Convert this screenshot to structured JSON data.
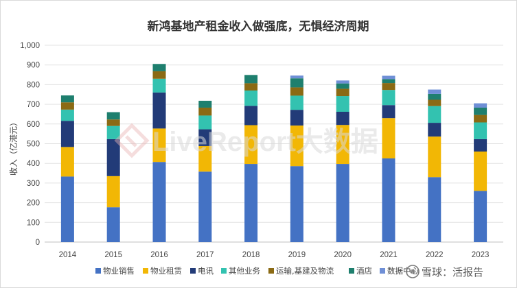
{
  "chart_data": {
    "type": "bar",
    "stacked": true,
    "title": "新鸿基地产租金收入做强底，无惧经济周期",
    "ylabel": "收入（亿港元）",
    "xlabel": "",
    "ylim": [
      0,
      1000
    ],
    "yticks": [
      "0",
      "100",
      "200",
      "300",
      "400",
      "500",
      "600",
      "700",
      "800",
      "900",
      "1,000"
    ],
    "grid": true,
    "legend_position": "bottom",
    "categories": [
      "2014",
      "2015",
      "2016",
      "2017",
      "2018",
      "2019",
      "2020",
      "2021",
      "2022",
      "2023"
    ],
    "series": [
      {
        "name": "物业销售",
        "color": "#4472c4",
        "values": [
          333,
          177,
          407,
          358,
          397,
          386,
          397,
          425,
          330,
          260
        ]
      },
      {
        "name": "物业租赁",
        "color": "#f2b705",
        "values": [
          150,
          158,
          170,
          130,
          197,
          206,
          198,
          205,
          206,
          200
        ]
      },
      {
        "name": "电讯",
        "color": "#223b78",
        "values": [
          133,
          188,
          183,
          85,
          98,
          80,
          67,
          66,
          70,
          63
        ]
      },
      {
        "name": "其他业务",
        "color": "#33c2b0",
        "values": [
          57,
          67,
          70,
          70,
          78,
          72,
          80,
          77,
          85,
          85
        ]
      },
      {
        "name": "运输,基建及物流",
        "color": "#8b6a14",
        "values": [
          37,
          33,
          38,
          40,
          37,
          42,
          37,
          35,
          32,
          38
        ]
      },
      {
        "name": "酒店",
        "color": "#1e7f6e",
        "values": [
          35,
          37,
          37,
          35,
          42,
          46,
          27,
          20,
          30,
          37
        ]
      },
      {
        "name": "数据中心",
        "color": "#6f8fd6",
        "values": [
          0,
          0,
          0,
          0,
          0,
          14,
          15,
          17,
          22,
          22
        ]
      }
    ]
  },
  "watermark": {
    "text": "LiveReport大数据"
  },
  "corner": {
    "text": "雪球：活报告"
  }
}
